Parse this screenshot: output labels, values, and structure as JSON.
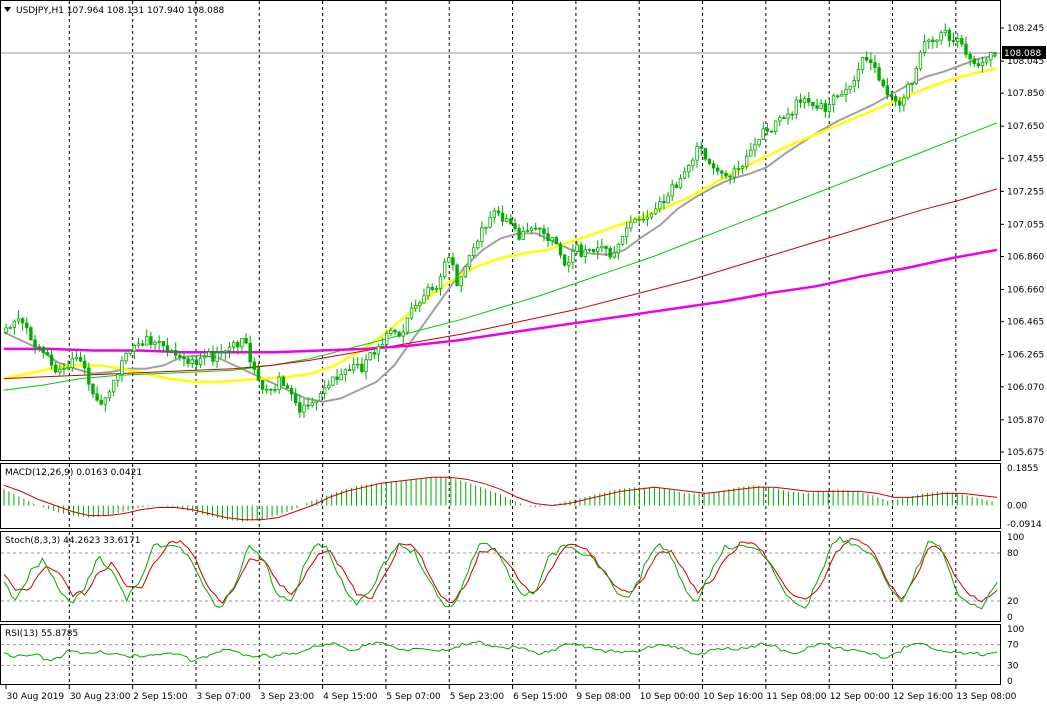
{
  "colors": {
    "background": "#ffffff",
    "bull": "#00aa00",
    "bear": "#00aa00",
    "ma20": "#a0a0a0",
    "ma50": "#ffff00",
    "ma100": "#00cc00",
    "ma200": "#cc0000",
    "ma_slow": "#ee00ee",
    "macd_hist": "#00aa00",
    "macd_signal": "#cc0000",
    "stoch_main": "#00aa00",
    "stoch_signal": "#cc0000",
    "rsi": "#00aa00",
    "price_line": "#909090",
    "current_price_bg": "#000000"
  },
  "main": {
    "header": "USDJPY,H1  107.964 108.131 107.940 108.088",
    "current_price": "108.088"
  },
  "macd": {
    "header": "MACD(12,26,9) 0.0163 0.0421"
  },
  "stoch": {
    "header": "Stoch(8,3,3) 44.2623 33.6171"
  },
  "rsi": {
    "header": "RSI(13) 55.8785"
  },
  "chart_data": [
    {
      "type": "candlestick",
      "title": "USDJPY,H1",
      "ohlc_header": [
        "107.964",
        "108.131",
        "107.940",
        "108.088"
      ],
      "y_ticks": [
        "108.245",
        "108.045",
        "107.850",
        "107.650",
        "107.455",
        "107.255",
        "107.055",
        "106.860",
        "106.660",
        "106.465",
        "106.265",
        "106.070",
        "105.870",
        "105.675"
      ],
      "ylim": [
        105.675,
        108.245
      ],
      "x_ticks": [
        "30 Aug 2019",
        "30 Aug 23:00",
        "2 Sep 15:00",
        "3 Sep 07:00",
        "3 Sep 23:00",
        "4 Sep 15:00",
        "5 Sep 07:00",
        "5 Sep 23:00",
        "6 Sep 15:00",
        "9 Sep 08:00",
        "10 Sep 00:00",
        "10 Sep 16:00",
        "11 Sep 08:00",
        "12 Sep 00:00",
        "12 Sep 16:00",
        "13 Sep 08:00"
      ],
      "close_path": [
        106.4,
        106.45,
        106.38,
        106.32,
        106.2,
        106.15,
        106.25,
        106.1,
        106.0,
        106.12,
        106.25,
        106.28,
        106.35,
        106.38,
        106.3,
        106.22,
        106.18,
        106.25,
        106.3,
        106.38,
        106.32,
        106.1,
        106.0,
        106.15,
        106.05,
        105.92,
        105.98,
        106.05,
        106.15,
        106.22,
        106.2,
        106.25,
        106.35,
        106.4,
        106.55,
        106.65,
        106.6,
        106.85,
        106.7,
        106.9,
        107.05,
        107.1,
        107.05,
        107.0,
        107.08,
        107.02,
        106.95,
        106.78,
        106.9,
        106.92,
        106.95,
        106.85,
        107.0,
        107.05,
        107.15,
        107.22,
        107.25,
        107.35,
        107.48,
        107.45,
        107.38,
        107.35,
        107.4,
        107.52,
        107.65,
        107.72,
        107.75,
        107.78,
        107.72,
        107.8,
        107.88,
        107.92,
        108.05,
        107.95,
        107.85,
        107.8,
        107.95,
        108.12,
        108.15,
        108.2,
        108.18,
        108.1,
        108.0,
        108.08
      ],
      "series": [
        {
          "name": "MA",
          "values": [
            106.4,
            106.35,
            106.3,
            106.22,
            106.18,
            106.15,
            106.16,
            106.18,
            106.18,
            106.2,
            106.25,
            106.26,
            106.25,
            106.2,
            106.15,
            106.1,
            106.05,
            106.0,
            105.98,
            106.0,
            106.05,
            106.1,
            106.2,
            106.35,
            106.5,
            106.65,
            106.8,
            106.9,
            106.97,
            107.0,
            107.0,
            106.95,
            106.9,
            106.88,
            106.87,
            106.9,
            106.98,
            107.05,
            107.15,
            107.22,
            107.28,
            107.33,
            107.36,
            107.4,
            107.48,
            107.55,
            107.62,
            107.68,
            107.73,
            107.78,
            107.84,
            107.9,
            107.95,
            107.98,
            108.02,
            108.06,
            108.08
          ]
        },
        {
          "name": "MA",
          "values": [
            106.12,
            106.15,
            106.18,
            106.2,
            106.2,
            106.18,
            106.15,
            106.12,
            106.1,
            106.1,
            106.11,
            106.12,
            106.13,
            106.15,
            106.2,
            106.28,
            106.38,
            106.5,
            106.62,
            106.72,
            106.8,
            106.85,
            106.88,
            106.9,
            106.95,
            107.0,
            107.05,
            107.1,
            107.16,
            107.22,
            107.3,
            107.38,
            107.45,
            107.52,
            107.58,
            107.64,
            107.7,
            107.76,
            107.82,
            107.88,
            107.93,
            107.97,
            108.0
          ]
        },
        {
          "name": "MA",
          "values": [
            106.05,
            106.08,
            106.12,
            106.14,
            106.15,
            106.16,
            106.17,
            106.2,
            106.24,
            106.3,
            106.36,
            106.42,
            106.48,
            106.55,
            106.62,
            106.7,
            106.78,
            106.86,
            106.95,
            107.04,
            107.13,
            107.22,
            107.31,
            107.4,
            107.49,
            107.58,
            107.67
          ]
        },
        {
          "name": "MA",
          "values": [
            106.12,
            106.13,
            106.14,
            106.15,
            106.16,
            106.17,
            106.18,
            106.2,
            106.23,
            106.27,
            106.31,
            106.35,
            106.39,
            106.44,
            106.49,
            106.54,
            106.6,
            106.66,
            106.72,
            106.79,
            106.86,
            106.93,
            107.0,
            107.07,
            107.14,
            107.2,
            107.27
          ]
        },
        {
          "name": "MA",
          "values": [
            106.3,
            106.3,
            106.29,
            106.29,
            106.28,
            106.28,
            106.28,
            106.29,
            106.3,
            106.32,
            106.35,
            106.39,
            106.43,
            106.47,
            106.51,
            106.55,
            106.59,
            106.64,
            106.68,
            106.74,
            106.79,
            106.85,
            106.9
          ]
        }
      ]
    },
    {
      "type": "bar",
      "title": "MACD(12,26,9)",
      "header_values": [
        "0.0163",
        "0.0421"
      ],
      "y_ticks": [
        "0.1855",
        "0.00",
        "-0.0914"
      ],
      "ylim": [
        -0.0914,
        0.1855
      ],
      "series": [
        {
          "name": "MACD",
          "values": [
            0.08,
            0.04,
            0.0,
            -0.03,
            -0.05,
            -0.06,
            -0.05,
            -0.03,
            -0.01,
            0.0,
            -0.01,
            -0.03,
            -0.05,
            -0.07,
            -0.08,
            -0.07,
            -0.05,
            -0.02,
            0.02,
            0.05,
            0.08,
            0.1,
            0.11,
            0.12,
            0.13,
            0.14,
            0.14,
            0.12,
            0.09,
            0.06,
            0.02,
            -0.01,
            0.0,
            0.02,
            0.04,
            0.06,
            0.08,
            0.09,
            0.09,
            0.08,
            0.06,
            0.06,
            0.07,
            0.09,
            0.1,
            0.09,
            0.07,
            0.06,
            0.07,
            0.08,
            0.07,
            0.05,
            0.02,
            0.04,
            0.06,
            0.07,
            0.06,
            0.04,
            0.02
          ]
        },
        {
          "name": "Signal",
          "values": [
            0.1,
            0.07,
            0.03,
            0.0,
            -0.03,
            -0.05,
            -0.05,
            -0.04,
            -0.02,
            -0.01,
            -0.01,
            -0.02,
            -0.04,
            -0.06,
            -0.07,
            -0.07,
            -0.06,
            -0.03,
            0.0,
            0.04,
            0.07,
            0.09,
            0.11,
            0.12,
            0.13,
            0.14,
            0.14,
            0.13,
            0.11,
            0.08,
            0.04,
            0.01,
            0.0,
            0.01,
            0.03,
            0.05,
            0.07,
            0.08,
            0.09,
            0.08,
            0.07,
            0.06,
            0.07,
            0.08,
            0.09,
            0.09,
            0.08,
            0.07,
            0.07,
            0.07,
            0.07,
            0.06,
            0.04,
            0.04,
            0.05,
            0.06,
            0.06,
            0.05,
            0.04
          ]
        }
      ]
    },
    {
      "type": "line",
      "title": "Stoch(8,3,3)",
      "header_values": [
        "44.2623",
        "33.6171"
      ],
      "y_ticks": [
        "100",
        "80",
        "20",
        "0"
      ],
      "ylim": [
        0,
        100
      ],
      "series": [
        {
          "name": "Main",
          "values": [
            45,
            20,
            55,
            70,
            40,
            15,
            35,
            75,
            60,
            25,
            40,
            85,
            95,
            90,
            60,
            25,
            15,
            45,
            85,
            70,
            35,
            20,
            60,
            90,
            80,
            40,
            15,
            30,
            70,
            95,
            85,
            50,
            20,
            15,
            55,
            90,
            85,
            60,
            30,
            25,
            70,
            92,
            88,
            75,
            55,
            35,
            25,
            60,
            88,
            80,
            40,
            20,
            55,
            85,
            95,
            90,
            70,
            40,
            20,
            15,
            50,
            92,
            98,
            90,
            70,
            35,
            20,
            60,
            95,
            80,
            35,
            20,
            15,
            40
          ]
        },
        {
          "name": "Signal",
          "values": [
            50,
            30,
            40,
            65,
            55,
            25,
            30,
            60,
            65,
            35,
            35,
            70,
            90,
            92,
            75,
            40,
            20,
            35,
            70,
            75,
            50,
            25,
            45,
            80,
            85,
            55,
            25,
            25,
            55,
            88,
            88,
            65,
            30,
            18,
            40,
            80,
            88,
            70,
            40,
            25,
            55,
            85,
            90,
            80,
            60,
            40,
            28,
            45,
            80,
            85,
            55,
            28,
            45,
            75,
            90,
            92,
            78,
            50,
            28,
            18,
            35,
            80,
            96,
            93,
            78,
            45,
            25,
            45,
            85,
            85,
            50,
            25,
            18,
            34
          ]
        }
      ]
    },
    {
      "type": "line",
      "title": "RSI(13)",
      "header_values": [
        "55.8785"
      ],
      "y_ticks": [
        "100",
        "70",
        "30",
        "0"
      ],
      "ylim": [
        0,
        100
      ],
      "series": [
        {
          "name": "RSI",
          "values": [
            55,
            45,
            50,
            40,
            55,
            50,
            60,
            52,
            45,
            50,
            55,
            48,
            42,
            50,
            58,
            55,
            48,
            45,
            52,
            60,
            65,
            70,
            62,
            68,
            72,
            65,
            60,
            58,
            62,
            68,
            72,
            70,
            66,
            58,
            55,
            62,
            70,
            66,
            60,
            52,
            58,
            68,
            66,
            60,
            55,
            58,
            62,
            66,
            70,
            64,
            56,
            62,
            70,
            66,
            58,
            50,
            46,
            62,
            72,
            66,
            56,
            50,
            52,
            56
          ]
        }
      ]
    }
  ]
}
